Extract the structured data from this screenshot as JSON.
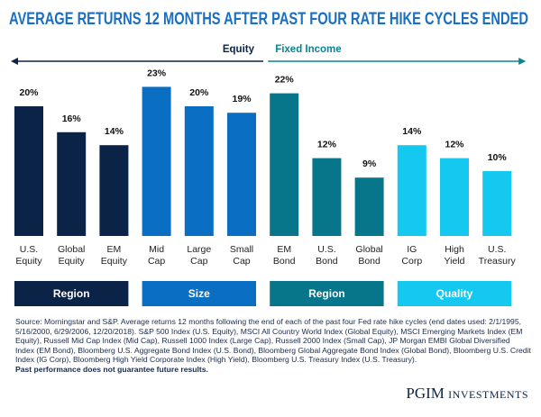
{
  "chart_data": {
    "type": "bar",
    "title": "AVERAGE RETURNS 12 MONTHS AFTER PAST FOUR RATE HIKE CYCLES ENDED",
    "sections": [
      {
        "label": "Equity",
        "color": "#0b2346",
        "groups": [
          {
            "name": "Region",
            "color": "#0b2346",
            "categories": [
              [
                "U.S.",
                "Equity"
              ],
              [
                "Global",
                "Equity"
              ],
              [
                "EM",
                "Equity"
              ]
            ],
            "values": [
              20,
              16,
              14
            ],
            "value_labels": [
              "20%",
              "16%",
              "14%"
            ]
          },
          {
            "name": "Size",
            "color": "#0a6fc2",
            "categories": [
              [
                "Mid",
                "Cap"
              ],
              [
                "Large",
                "Cap"
              ],
              [
                "Small",
                "Cap"
              ]
            ],
            "values": [
              23,
              20,
              19
            ],
            "value_labels": [
              "23%",
              "20%",
              "19%"
            ]
          }
        ]
      },
      {
        "label": "Fixed Income",
        "color": "#0a8494",
        "groups": [
          {
            "name": "Region",
            "color": "#08768a",
            "categories": [
              [
                "EM",
                "Bond"
              ],
              [
                "U.S.",
                "Bond"
              ],
              [
                "Global",
                "Bond"
              ]
            ],
            "values": [
              22,
              12,
              9
            ],
            "value_labels": [
              "22%",
              "12%",
              "9%"
            ]
          },
          {
            "name": "Quality",
            "color": "#14c8f0",
            "categories": [
              [
                "IG",
                "Corp"
              ],
              [
                "High",
                "Yield"
              ],
              [
                "U.S.",
                "Treasury"
              ]
            ],
            "values": [
              14,
              12,
              10
            ],
            "value_labels": [
              "14%",
              "12%",
              "10%"
            ]
          }
        ]
      }
    ]
  },
  "footer": {
    "source": "Source: Morningstar and S&P. Average returns 12 months following the end of each of the past four Fed rate hike cycles (end dates used: 2/1/1995, 5/16/2000, 6/29/2006, 12/20/2018). S&P 500 Index (U.S. Equity), MSCI All Country World Index (Global Equity), MSCI Emerging Markets Index (EM Equity), Russell Mid Cap Index (Mid Cap), Russell 1000 Index (Large Cap), Russell 2000 Index (Small Cap), JP Morgan EMBI Global Diversified Index (EM Bond), Bloomberg U.S. Aggregate Bond Index (U.S. Bond), Bloomberg Global Aggregate Bond Index (Global Bond), Bloomberg U.S. Credit Index (IG Corp), Bloomberg High Yield Corporate Index (High Yield), Bloomberg U.S. Treasury Index (U.S. Treasury).",
    "disclaimer": "Past performance does not guarantee future results.",
    "logo": "PGIM",
    "logo_suffix": "INVESTMENTS"
  }
}
